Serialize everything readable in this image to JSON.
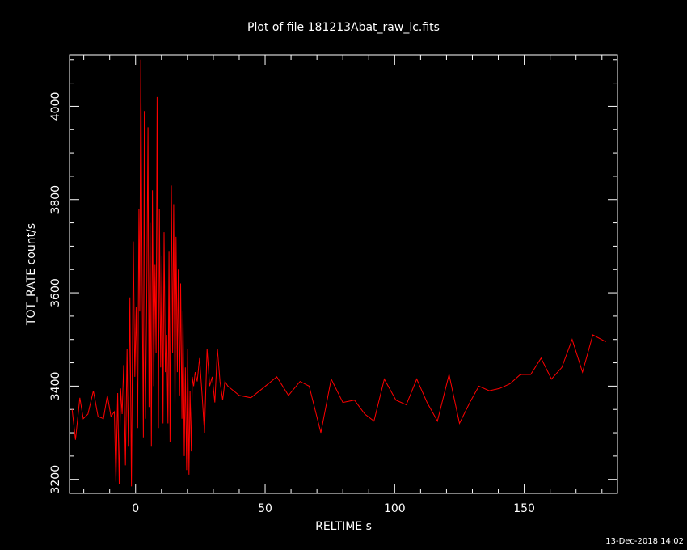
{
  "chart_data": {
    "type": "line",
    "title": "Plot of file 181213Abat_raw_lc.fits",
    "xlabel": "RELTIME  s",
    "ylabel": "TOT_RATE  count/s",
    "xlim": [
      -25.5,
      186
    ],
    "ylim": [
      3170,
      4110
    ],
    "grid": false,
    "x_ticks": [
      0,
      50,
      100,
      150
    ],
    "x_tick_labels": [
      "0",
      "50",
      "100",
      "150"
    ],
    "y_ticks": [
      3200,
      3400,
      3600,
      3800,
      4000
    ],
    "y_tick_labels": [
      "3200",
      "3400",
      "3600",
      "3800",
      "4000"
    ],
    "series": [
      {
        "color": "#ff0000",
        "x": [
          -24.5,
          -23.2,
          -21.5,
          -20.2,
          -18.4,
          -16.3,
          -14.5,
          -12.4,
          -10.9,
          -9.5,
          -8.2,
          -7.6,
          -6.9,
          -6.3,
          -5.8,
          -5.2,
          -4.6,
          -3.9,
          -3.3,
          -2.8,
          -2.2,
          -1.6,
          -0.9,
          -0.3,
          0.2,
          0.8,
          1.3,
          1.6,
          2.0,
          2.5,
          3.0,
          3.4,
          3.8,
          4.3,
          4.8,
          5.2,
          5.6,
          6.1,
          6.5,
          7.0,
          7.5,
          7.9,
          8.3,
          8.8,
          9.2,
          9.7,
          10.2,
          10.6,
          11.0,
          11.5,
          12.0,
          12.5,
          12.9,
          13.3,
          13.8,
          14.3,
          14.7,
          15.2,
          15.6,
          16.1,
          16.5,
          17.0,
          17.4,
          17.9,
          18.3,
          18.8,
          19.2,
          19.7,
          20.1,
          20.6,
          21.0,
          21.5,
          21.9,
          22.4,
          23.0,
          23.8,
          24.7,
          25.7,
          26.6,
          27.6,
          28.6,
          29.6,
          30.6,
          31.6,
          32.6,
          33.6,
          34.5,
          35.6,
          36.7,
          40.0,
          44.5,
          49.0,
          54.5,
          59.0,
          63.5,
          67.0,
          71.5,
          75.5,
          80.0,
          84.5,
          88.5,
          92.0,
          96.0,
          100.5,
          104.5,
          108.5,
          112.5,
          116.5,
          121.0,
          125.0,
          129.0,
          132.5,
          136.5,
          140.5,
          144.5,
          148.5,
          152.5,
          156.5,
          160.5,
          164.5,
          168.5,
          172.5,
          176.5,
          181.5
        ],
        "y": [
          3350,
          3285,
          3375,
          3330,
          3340,
          3390,
          3335,
          3330,
          3380,
          3335,
          3345,
          3195,
          3385,
          3190,
          3395,
          3340,
          3445,
          3230,
          3480,
          3270,
          3590,
          3185,
          3710,
          3420,
          3570,
          3310,
          3780,
          3560,
          4100,
          3640,
          3290,
          3990,
          3330,
          3580,
          3955,
          3355,
          3750,
          3270,
          3820,
          3400,
          3660,
          3470,
          4020,
          3310,
          3780,
          3440,
          3680,
          3320,
          3730,
          3430,
          3510,
          3320,
          3690,
          3280,
          3830,
          3470,
          3790,
          3360,
          3720,
          3430,
          3650,
          3380,
          3620,
          3330,
          3560,
          3250,
          3440,
          3220,
          3480,
          3210,
          3390,
          3260,
          3420,
          3400,
          3430,
          3410,
          3460,
          3380,
          3300,
          3480,
          3400,
          3420,
          3365,
          3480,
          3410,
          3370,
          3410,
          3400,
          3395,
          3380,
          3375,
          3395,
          3420,
          3380,
          3410,
          3400,
          3300,
          3415,
          3365,
          3370,
          3340,
          3325,
          3415,
          3370,
          3360,
          3415,
          3365,
          3325,
          3425,
          3320,
          3365,
          3400,
          3390,
          3395,
          3405,
          3425,
          3425,
          3460,
          3415,
          3440,
          3500,
          3430,
          3510,
          3495
        ]
      }
    ]
  },
  "footer": {
    "timestamp": "13-Dec-2018 14:02"
  }
}
